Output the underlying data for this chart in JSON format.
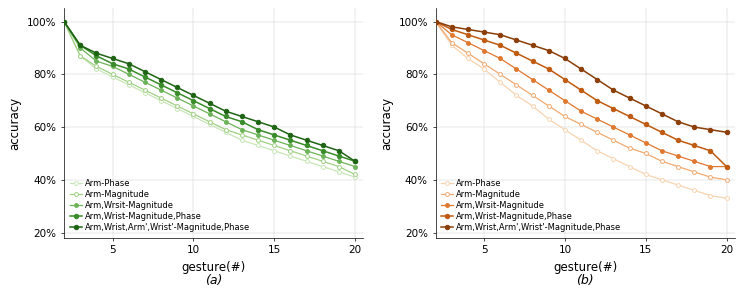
{
  "x": [
    2,
    3,
    4,
    5,
    6,
    7,
    8,
    9,
    10,
    11,
    12,
    13,
    14,
    15,
    16,
    17,
    18,
    19,
    20
  ],
  "green_series": {
    "arm_phase": [
      1.0,
      0.87,
      0.82,
      0.79,
      0.76,
      0.73,
      0.7,
      0.67,
      0.64,
      0.61,
      0.58,
      0.55,
      0.53,
      0.51,
      0.49,
      0.47,
      0.45,
      0.43,
      0.41
    ],
    "arm_magnitude": [
      1.0,
      0.87,
      0.83,
      0.8,
      0.77,
      0.74,
      0.71,
      0.68,
      0.65,
      0.62,
      0.59,
      0.57,
      0.55,
      0.53,
      0.51,
      0.49,
      0.47,
      0.45,
      0.42
    ],
    "arm_wrist_mag": [
      1.0,
      0.9,
      0.85,
      0.83,
      0.8,
      0.77,
      0.74,
      0.71,
      0.68,
      0.65,
      0.62,
      0.59,
      0.57,
      0.55,
      0.53,
      0.51,
      0.49,
      0.47,
      0.45
    ],
    "arm_wrist_mag_phase": [
      1.0,
      0.91,
      0.87,
      0.84,
      0.82,
      0.79,
      0.76,
      0.73,
      0.7,
      0.67,
      0.64,
      0.62,
      0.59,
      0.57,
      0.55,
      0.53,
      0.51,
      0.49,
      0.47
    ],
    "arm_wrist_arm_wrist_mag_phase": [
      1.0,
      0.91,
      0.88,
      0.86,
      0.84,
      0.81,
      0.78,
      0.75,
      0.72,
      0.69,
      0.66,
      0.64,
      0.62,
      0.6,
      0.57,
      0.55,
      0.53,
      0.51,
      0.47
    ]
  },
  "orange_series": {
    "arm_phase": [
      1.0,
      0.91,
      0.86,
      0.82,
      0.77,
      0.72,
      0.68,
      0.63,
      0.59,
      0.55,
      0.51,
      0.48,
      0.45,
      0.42,
      0.4,
      0.38,
      0.36,
      0.34,
      0.33
    ],
    "arm_magnitude": [
      1.0,
      0.92,
      0.88,
      0.84,
      0.8,
      0.76,
      0.72,
      0.68,
      0.64,
      0.61,
      0.58,
      0.55,
      0.52,
      0.5,
      0.47,
      0.45,
      0.43,
      0.41,
      0.4
    ],
    "arm_wrist_mag": [
      1.0,
      0.95,
      0.92,
      0.89,
      0.86,
      0.82,
      0.78,
      0.74,
      0.7,
      0.66,
      0.63,
      0.6,
      0.57,
      0.54,
      0.51,
      0.49,
      0.47,
      0.45,
      0.45
    ],
    "arm_wrist_mag_phase": [
      1.0,
      0.97,
      0.95,
      0.93,
      0.91,
      0.88,
      0.85,
      0.82,
      0.78,
      0.74,
      0.7,
      0.67,
      0.64,
      0.61,
      0.58,
      0.55,
      0.53,
      0.51,
      0.45
    ],
    "arm_wrist_arm_wrist_mag_phase": [
      1.0,
      0.98,
      0.97,
      0.96,
      0.95,
      0.93,
      0.91,
      0.89,
      0.86,
      0.82,
      0.78,
      0.74,
      0.71,
      0.68,
      0.65,
      0.62,
      0.6,
      0.59,
      0.58
    ]
  },
  "green_colors": [
    "#c8e6b8",
    "#a0d085",
    "#6db35a",
    "#3a8c2a",
    "#1e6414"
  ],
  "orange_colors": [
    "#f7d4b0",
    "#f0aa72",
    "#e07830",
    "#c05a10",
    "#8c3e08"
  ],
  "legend_labels": [
    "Arm-Phase",
    "Arm-Magnitude",
    "Arm,Wrsit-Magnitude",
    "Arm,Wrist-Magnitude,Phase",
    "Arm,Wrist,Arm',Wrist'-Magnitude,Phase"
  ],
  "xlabel": "gesture(#)",
  "ylabel": "accuracy",
  "caption_a": "(a)",
  "caption_b": "(b)",
  "yticks": [
    0.2,
    0.4,
    0.6,
    0.8,
    1.0
  ],
  "xticks": [
    5,
    10,
    15,
    20
  ],
  "ylim": [
    0.18,
    1.05
  ],
  "xlim": [
    2,
    20.5
  ]
}
